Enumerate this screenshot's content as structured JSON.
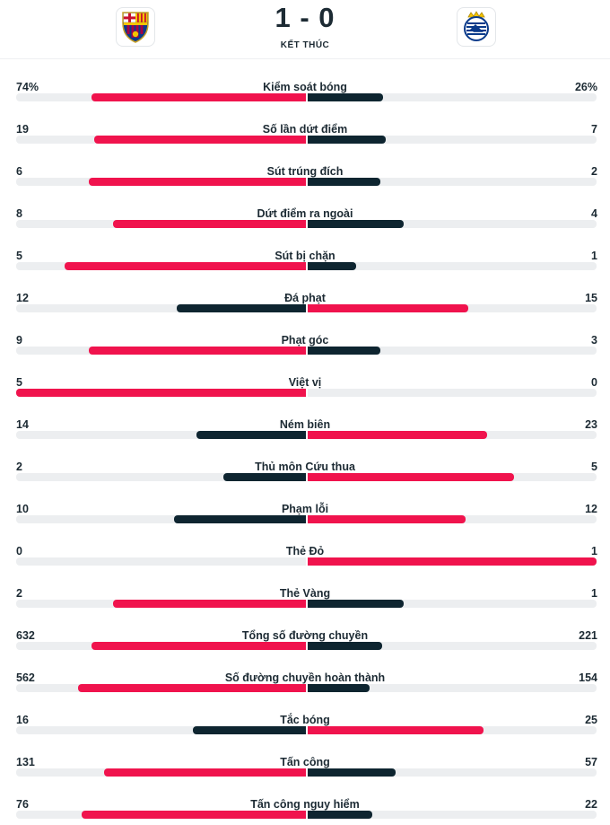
{
  "match": {
    "score": "1 - 0",
    "status": "KẾT THÚC",
    "home_logo": "barcelona-crest-icon",
    "away_logo": "real-sociedad-crest-icon"
  },
  "colors": {
    "lead": "#f0134d",
    "trail": "#0e2530",
    "track": "#eceef0"
  },
  "stats": [
    {
      "name": "Kiểm soát bóng",
      "home": "74%",
      "away": "26%",
      "h": 74,
      "a": 26
    },
    {
      "name": "Số lần dứt điểm",
      "home": "19",
      "away": "7",
      "h": 19,
      "a": 7
    },
    {
      "name": "Sút trúng đích",
      "home": "6",
      "away": "2",
      "h": 6,
      "a": 2
    },
    {
      "name": "Dứt điểm ra ngoài",
      "home": "8",
      "away": "4",
      "h": 8,
      "a": 4
    },
    {
      "name": "Sút bị chặn",
      "home": "5",
      "away": "1",
      "h": 5,
      "a": 1
    },
    {
      "name": "Đá phạt",
      "home": "12",
      "away": "15",
      "h": 12,
      "a": 15
    },
    {
      "name": "Phạt góc",
      "home": "9",
      "away": "3",
      "h": 9,
      "a": 3
    },
    {
      "name": "Việt vị",
      "home": "5",
      "away": "0",
      "h": 5,
      "a": 0
    },
    {
      "name": "Ném biên",
      "home": "14",
      "away": "23",
      "h": 14,
      "a": 23
    },
    {
      "name": "Thủ môn Cứu thua",
      "home": "2",
      "away": "5",
      "h": 2,
      "a": 5
    },
    {
      "name": "Phạm lỗi",
      "home": "10",
      "away": "12",
      "h": 10,
      "a": 12
    },
    {
      "name": "Thẻ Đỏ",
      "home": "0",
      "away": "1",
      "h": 0,
      "a": 1
    },
    {
      "name": "Thẻ Vàng",
      "home": "2",
      "away": "1",
      "h": 2,
      "a": 1
    },
    {
      "name": "Tổng số đường chuyền",
      "home": "632",
      "away": "221",
      "h": 632,
      "a": 221
    },
    {
      "name": "Số đường chuyền hoàn thành",
      "home": "562",
      "away": "154",
      "h": 562,
      "a": 154
    },
    {
      "name": "Tắc bóng",
      "home": "16",
      "away": "25",
      "h": 16,
      "a": 25
    },
    {
      "name": "Tấn công",
      "home": "131",
      "away": "57",
      "h": 131,
      "a": 57
    },
    {
      "name": "Tấn công nguy hiểm",
      "home": "76",
      "away": "22",
      "h": 76,
      "a": 22
    }
  ]
}
